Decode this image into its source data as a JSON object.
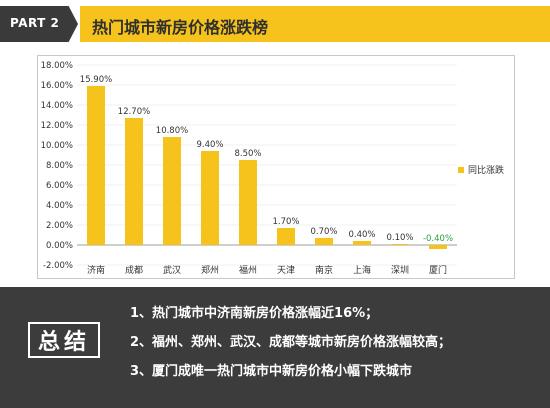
{
  "header": {
    "part_label": "PART 2",
    "title": "热门城市新房价格涨跌榜"
  },
  "chart_data": {
    "type": "bar",
    "categories": [
      "济南",
      "成都",
      "武汉",
      "郑州",
      "福州",
      "天津",
      "南京",
      "上海",
      "深圳",
      "厦门"
    ],
    "values": [
      15.9,
      12.7,
      10.8,
      9.4,
      8.5,
      1.7,
      0.7,
      0.4,
      0.1,
      -0.4
    ],
    "labels": [
      "15.90%",
      "12.70%",
      "10.80%",
      "9.40%",
      "8.50%",
      "1.70%",
      "0.70%",
      "0.40%",
      "0.10%",
      "-0.40%"
    ],
    "series": [
      {
        "name": "同比涨跌",
        "values": [
          15.9,
          12.7,
          10.8,
          9.4,
          8.5,
          1.7,
          0.7,
          0.4,
          0.1,
          -0.4
        ]
      }
    ],
    "yticks": [
      "18.00%",
      "16.00%",
      "14.00%",
      "12.00%",
      "10.00%",
      "8.00%",
      "6.00%",
      "4.00%",
      "2.00%",
      "0.00%",
      "-2.00%"
    ],
    "ylim": [
      -2,
      18
    ],
    "legend_position": "right",
    "colors": {
      "bar": "#f6c21c",
      "negative_label": "#2e9e3b"
    }
  },
  "summary": {
    "label": "总结",
    "items": [
      "1、热门城市中济南新房价格涨幅近16%；",
      "2、福州、郑州、武汉、成都等城市新房价格涨幅较高；",
      "3、厦门成唯一热门城市中新房价格小幅下跌城市"
    ]
  }
}
